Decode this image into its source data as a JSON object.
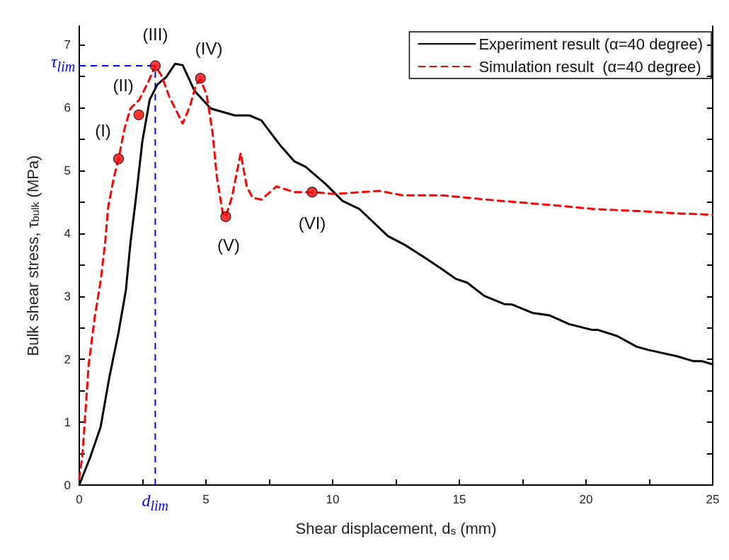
{
  "chart_data": {
    "type": "line",
    "xlabel": "Shear displacement, d$_{s}$ (mm)",
    "ylabel": "Bulk shear stress, τ$_{bulk}$ (MPa)",
    "xlim": [
      0,
      25
    ],
    "xticks": [
      0,
      {
        "value": 2.5,
        "label": null
      },
      5,
      {
        "value": 7.5,
        "label": null
      },
      10,
      {
        "value": 12.5,
        "label": null
      },
      15,
      {
        "value": 17.5,
        "label": null
      },
      20,
      {
        "value": 22.5,
        "label": null
      },
      25
    ],
    "ylim": [
      0,
      7.3
    ],
    "yticks": [
      0,
      {
        "value": 0.5,
        "label": null
      },
      1,
      {
        "value": 1.5,
        "label": null
      },
      2,
      {
        "value": 2.5,
        "label": null
      },
      3,
      {
        "value": 3.5,
        "label": null
      },
      4,
      {
        "value": 4.5,
        "label": null
      },
      5,
      {
        "value": 5.5,
        "label": null
      },
      6,
      {
        "value": 6.5,
        "label": null
      },
      7
    ],
    "grid": false,
    "legend": "top right",
    "series": [
      {
        "name": "Experiment result (α=40 degree)",
        "color": "#000000",
        "line_style": "solid",
        "marker": "none",
        "x": [
          0,
          0.43,
          0.84,
          1.19,
          1.55,
          1.84,
          2.02,
          2.25,
          2.49,
          2.78,
          3.08,
          3.43,
          3.78,
          4.08,
          4.55,
          5.19,
          6.14,
          6.72,
          7.19,
          7.9,
          8.49,
          8.94,
          9.72,
          10.39,
          11.06,
          12.18,
          12.85,
          13.63,
          14.3,
          14.86,
          15.31,
          15.98,
          16.76,
          17.09,
          17.88,
          18.55,
          19.33,
          20.22,
          20.45,
          21.23,
          22.0,
          22.46,
          23.58,
          24.25,
          24.58,
          25
        ],
        "values": [
          0,
          0.44,
          0.92,
          1.72,
          2.43,
          3.1,
          3.85,
          4.61,
          5.47,
          6.13,
          6.37,
          6.49,
          6.7,
          6.68,
          6.27,
          5.99,
          5.88,
          5.88,
          5.8,
          5.42,
          5.15,
          5.06,
          4.79,
          4.52,
          4.39,
          3.96,
          3.82,
          3.62,
          3.44,
          3.28,
          3.22,
          3.01,
          2.88,
          2.87,
          2.74,
          2.7,
          2.56,
          2.47,
          2.47,
          2.37,
          2.2,
          2.15,
          2.05,
          1.97,
          1.97,
          1.92
        ]
      },
      {
        "name": "Simulation result  (α=40 degree)",
        "color": "#ff0000",
        "line_style": "dashed",
        "marker": "none",
        "x": [
          0,
          0.13,
          0.37,
          0.61,
          0.84,
          1.02,
          1.14,
          1.37,
          1.55,
          1.78,
          2.02,
          2.37,
          2.72,
          3.0,
          3.25,
          3.55,
          4.08,
          4.37,
          4.61,
          4.78,
          5.02,
          5.26,
          5.43,
          5.66,
          5.78,
          6.02,
          6.37,
          6.61,
          6.84,
          7.19,
          7.78,
          8.49,
          9.19,
          10.06,
          11.84,
          12.74,
          14.3,
          16.09,
          16.98,
          18.77,
          20.34,
          22.0,
          23.69,
          25
        ],
        "values": [
          0.1,
          0.49,
          1.91,
          2.67,
          3.24,
          3.85,
          4.42,
          4.9,
          5.19,
          5.66,
          5.99,
          6.13,
          6.41,
          6.67,
          6.51,
          6.18,
          5.75,
          6.03,
          6.37,
          6.45,
          6.22,
          5.61,
          4.9,
          4.33,
          4.27,
          4.57,
          5.28,
          4.75,
          4.57,
          4.54,
          4.75,
          4.66,
          4.66,
          4.63,
          4.68,
          4.61,
          4.61,
          4.54,
          4.51,
          4.45,
          4.39,
          4.36,
          4.32,
          4.3
        ]
      },
      {
        "type": "scatter",
        "color": "#ff0000",
        "marker": "circle",
        "x": [
          1.55,
          2.35,
          3.0,
          4.78,
          5.78,
          9.19
        ],
        "values": [
          5.19,
          5.89,
          6.67,
          6.47,
          4.27,
          4.66
        ]
      }
    ],
    "annotations": [
      {
        "text": "(I)",
        "x": 1.55,
        "y": 5.19
      },
      {
        "text": "(II)",
        "x": 2.35,
        "y": 5.89
      },
      {
        "text": "(III)",
        "x": 3.0,
        "y": 6.67
      },
      {
        "text": "(IV)",
        "x": 4.78,
        "y": 6.47
      },
      {
        "text": "(V)",
        "x": 5.78,
        "y": 4.27
      },
      {
        "text": "(VI)",
        "x": 9.19,
        "y": 4.66
      }
    ],
    "ref_lines": [
      {
        "axis": "y",
        "value": 6.67,
        "label": "τ$_{lim}$",
        "color": "#0000ff",
        "line_style": "dashed"
      },
      {
        "axis": "x",
        "value": 3.0,
        "label": "d$_{lim}$",
        "color": "#0000ff",
        "line_style": "dashed"
      }
    ]
  }
}
